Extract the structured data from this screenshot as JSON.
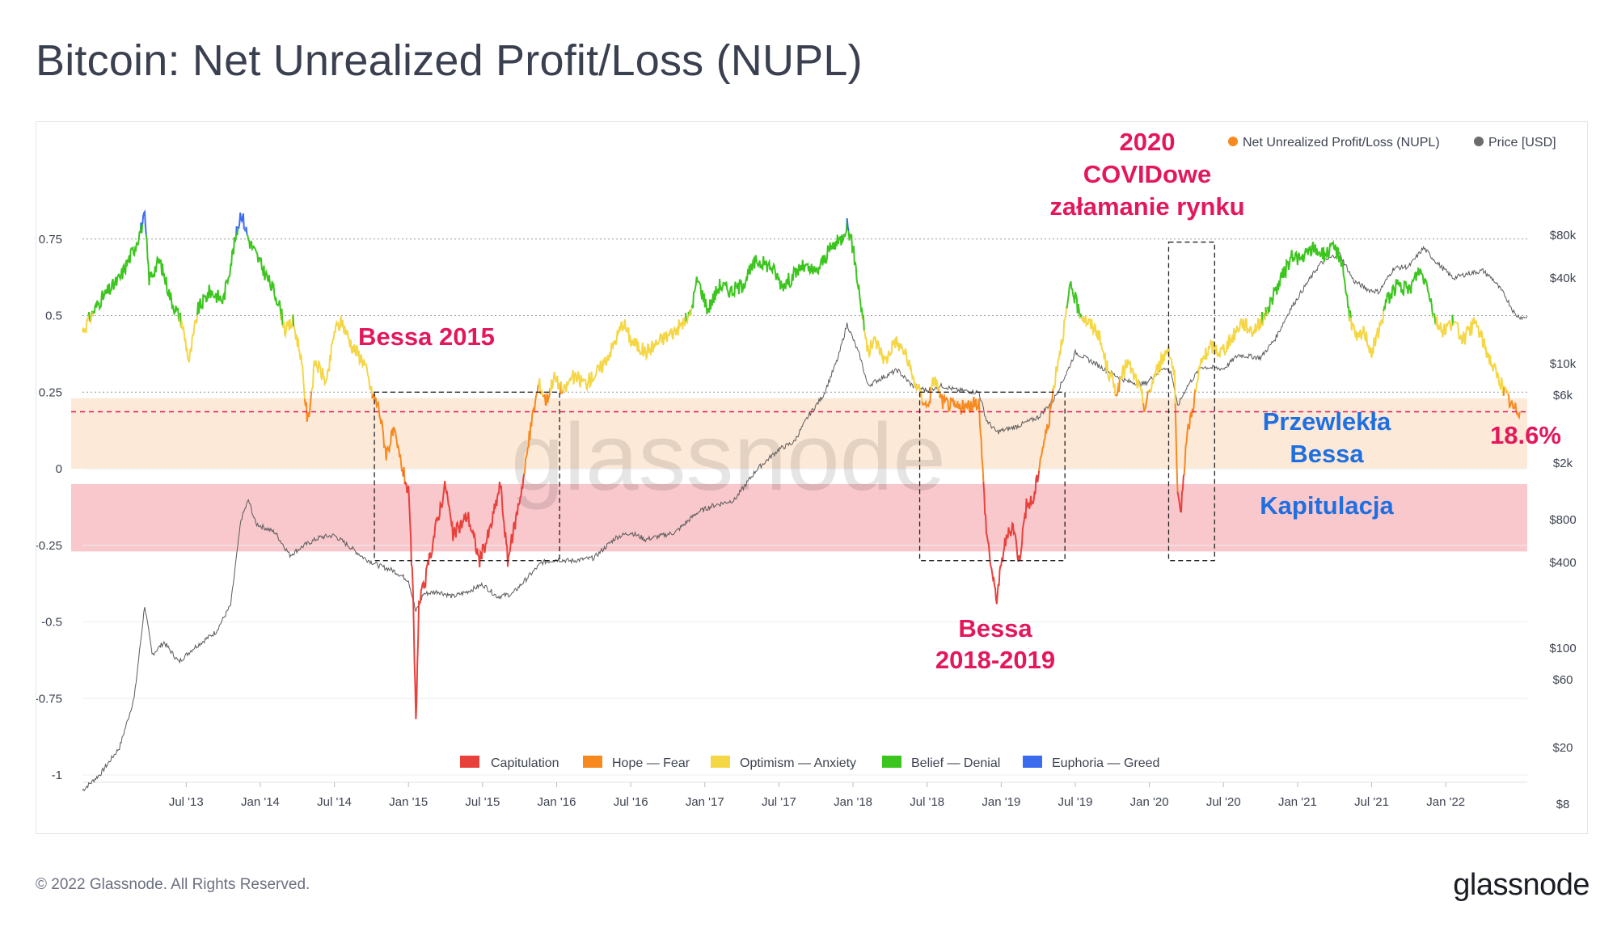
{
  "title": "Bitcoin: Net Unrealized Profit/Loss (NUPL)",
  "copyright": "© 2022 Glassnode. All Rights Reserved.",
  "brand": "glassnode",
  "watermark": "glassnode",
  "colors": {
    "capitulation": "#e8413c",
    "hope": "#f7891e",
    "optimism": "#f5d645",
    "belief": "#3cc51e",
    "euphoria": "#3b6cf0",
    "price": "#5a5a5a",
    "zone_hope": "#fde9d8",
    "zone_capitulation": "#f8c8cc",
    "annotation_red": "#e3185b",
    "annotation_blue": "#1f6fe0"
  },
  "chart_data": {
    "type": "line",
    "title": "Bitcoin: Net Unrealized Profit/Loss (NUPL)",
    "x_ticks": [
      "Jul '13",
      "Jan '14",
      "Jul '14",
      "Jan '15",
      "Jul '15",
      "Jan '16",
      "Jul '16",
      "Jan '17",
      "Jul '17",
      "Jan '18",
      "Jul '18",
      "Jan '19",
      "Jul '19",
      "Jan '20",
      "Jul '20",
      "Jan '21",
      "Jul '21",
      "Jan '22"
    ],
    "x_range": [
      2012.8,
      2022.55
    ],
    "y_left": {
      "ticks": [
        "0.75",
        "0.5",
        "0.25",
        "0",
        "-0.25",
        "-0.5",
        "-0.75",
        "-1"
      ],
      "range": [
        -1,
        1
      ]
    },
    "y_right": {
      "ticks": [
        "$80k",
        "$40k",
        "$10k",
        "$6k",
        "$2k",
        "$800",
        "$400",
        "$100",
        "$60",
        "$20",
        "$8"
      ],
      "scale": "log"
    },
    "series": [
      {
        "name": "Net Unrealized Profit/Loss (NUPL)",
        "axis": "left",
        "points": [
          [
            2012.8,
            0.45
          ],
          [
            2012.92,
            0.55
          ],
          [
            2013.05,
            0.62
          ],
          [
            2013.15,
            0.72
          ],
          [
            2013.22,
            0.82
          ],
          [
            2013.25,
            0.62
          ],
          [
            2013.32,
            0.68
          ],
          [
            2013.4,
            0.55
          ],
          [
            2013.47,
            0.48
          ],
          [
            2013.52,
            0.35
          ],
          [
            2013.58,
            0.52
          ],
          [
            2013.66,
            0.58
          ],
          [
            2013.75,
            0.55
          ],
          [
            2013.82,
            0.72
          ],
          [
            2013.87,
            0.84
          ],
          [
            2013.92,
            0.75
          ],
          [
            2013.97,
            0.7
          ],
          [
            2014.05,
            0.62
          ],
          [
            2014.12,
            0.55
          ],
          [
            2014.17,
            0.45
          ],
          [
            2014.22,
            0.48
          ],
          [
            2014.27,
            0.38
          ],
          [
            2014.32,
            0.15
          ],
          [
            2014.37,
            0.35
          ],
          [
            2014.45,
            0.28
          ],
          [
            2014.5,
            0.45
          ],
          [
            2014.55,
            0.48
          ],
          [
            2014.62,
            0.4
          ],
          [
            2014.7,
            0.35
          ],
          [
            2014.75,
            0.25
          ],
          [
            2014.8,
            0.2
          ],
          [
            2014.85,
            0.05
          ],
          [
            2014.9,
            0.12
          ],
          [
            2014.95,
            0.02
          ],
          [
            2015.0,
            -0.08
          ],
          [
            2015.03,
            -0.4
          ],
          [
            2015.05,
            -0.83
          ],
          [
            2015.07,
            -0.45
          ],
          [
            2015.12,
            -0.35
          ],
          [
            2015.18,
            -0.2
          ],
          [
            2015.25,
            -0.05
          ],
          [
            2015.3,
            -0.22
          ],
          [
            2015.4,
            -0.15
          ],
          [
            2015.48,
            -0.3
          ],
          [
            2015.55,
            -0.2
          ],
          [
            2015.62,
            -0.05
          ],
          [
            2015.67,
            -0.3
          ],
          [
            2015.73,
            -0.15
          ],
          [
            2015.78,
            -0.02
          ],
          [
            2015.83,
            0.15
          ],
          [
            2015.88,
            0.28
          ],
          [
            2015.93,
            0.22
          ],
          [
            2015.98,
            0.3
          ],
          [
            2016.05,
            0.25
          ],
          [
            2016.1,
            0.3
          ],
          [
            2016.2,
            0.28
          ],
          [
            2016.3,
            0.33
          ],
          [
            2016.38,
            0.4
          ],
          [
            2016.45,
            0.48
          ],
          [
            2016.5,
            0.42
          ],
          [
            2016.6,
            0.38
          ],
          [
            2016.7,
            0.42
          ],
          [
            2016.8,
            0.45
          ],
          [
            2016.9,
            0.5
          ],
          [
            2016.95,
            0.62
          ],
          [
            2017.02,
            0.52
          ],
          [
            2017.1,
            0.6
          ],
          [
            2017.18,
            0.58
          ],
          [
            2017.25,
            0.6
          ],
          [
            2017.35,
            0.68
          ],
          [
            2017.45,
            0.66
          ],
          [
            2017.52,
            0.6
          ],
          [
            2017.58,
            0.62
          ],
          [
            2017.65,
            0.66
          ],
          [
            2017.75,
            0.64
          ],
          [
            2017.85,
            0.72
          ],
          [
            2017.92,
            0.75
          ],
          [
            2017.96,
            0.8
          ],
          [
            2018.0,
            0.72
          ],
          [
            2018.05,
            0.55
          ],
          [
            2018.1,
            0.38
          ],
          [
            2018.15,
            0.42
          ],
          [
            2018.22,
            0.35
          ],
          [
            2018.28,
            0.42
          ],
          [
            2018.35,
            0.38
          ],
          [
            2018.4,
            0.3
          ],
          [
            2018.45,
            0.25
          ],
          [
            2018.5,
            0.2
          ],
          [
            2018.55,
            0.3
          ],
          [
            2018.6,
            0.22
          ],
          [
            2018.7,
            0.2
          ],
          [
            2018.78,
            0.2
          ],
          [
            2018.85,
            0.22
          ],
          [
            2018.88,
            -0.05
          ],
          [
            2018.9,
            -0.2
          ],
          [
            2018.95,
            -0.38
          ],
          [
            2018.97,
            -0.42
          ],
          [
            2019.02,
            -0.25
          ],
          [
            2019.08,
            -0.18
          ],
          [
            2019.12,
            -0.3
          ],
          [
            2019.17,
            -0.12
          ],
          [
            2019.22,
            -0.1
          ],
          [
            2019.27,
            0.05
          ],
          [
            2019.32,
            0.15
          ],
          [
            2019.37,
            0.32
          ],
          [
            2019.42,
            0.45
          ],
          [
            2019.47,
            0.6
          ],
          [
            2019.52,
            0.52
          ],
          [
            2019.58,
            0.48
          ],
          [
            2019.65,
            0.45
          ],
          [
            2019.72,
            0.32
          ],
          [
            2019.78,
            0.25
          ],
          [
            2019.85,
            0.35
          ],
          [
            2019.92,
            0.28
          ],
          [
            2019.97,
            0.2
          ],
          [
            2020.03,
            0.3
          ],
          [
            2020.08,
            0.35
          ],
          [
            2020.13,
            0.4
          ],
          [
            2020.17,
            0.3
          ],
          [
            2020.19,
            -0.1
          ],
          [
            2020.21,
            -0.15
          ],
          [
            2020.25,
            0.1
          ],
          [
            2020.3,
            0.22
          ],
          [
            2020.35,
            0.35
          ],
          [
            2020.42,
            0.4
          ],
          [
            2020.48,
            0.38
          ],
          [
            2020.55,
            0.42
          ],
          [
            2020.62,
            0.48
          ],
          [
            2020.7,
            0.45
          ],
          [
            2020.78,
            0.5
          ],
          [
            2020.85,
            0.58
          ],
          [
            2020.92,
            0.65
          ],
          [
            2020.97,
            0.7
          ],
          [
            2021.02,
            0.68
          ],
          [
            2021.1,
            0.72
          ],
          [
            2021.18,
            0.7
          ],
          [
            2021.25,
            0.72
          ],
          [
            2021.3,
            0.68
          ],
          [
            2021.35,
            0.5
          ],
          [
            2021.4,
            0.42
          ],
          [
            2021.45,
            0.45
          ],
          [
            2021.5,
            0.38
          ],
          [
            2021.55,
            0.45
          ],
          [
            2021.6,
            0.55
          ],
          [
            2021.67,
            0.6
          ],
          [
            2021.75,
            0.58
          ],
          [
            2021.82,
            0.65
          ],
          [
            2021.88,
            0.6
          ],
          [
            2021.92,
            0.5
          ],
          [
            2021.97,
            0.45
          ],
          [
            2022.05,
            0.48
          ],
          [
            2022.12,
            0.42
          ],
          [
            2022.2,
            0.48
          ],
          [
            2022.28,
            0.38
          ],
          [
            2022.35,
            0.3
          ],
          [
            2022.4,
            0.25
          ],
          [
            2022.45,
            0.2
          ],
          [
            2022.5,
            0.186
          ]
        ]
      },
      {
        "name": "Price [USD]",
        "axis": "right",
        "points": [
          [
            2012.8,
            10
          ],
          [
            2012.92,
            13
          ],
          [
            2013.05,
            20
          ],
          [
            2013.15,
            45
          ],
          [
            2013.22,
            200
          ],
          [
            2013.27,
            90
          ],
          [
            2013.35,
            110
          ],
          [
            2013.45,
            80
          ],
          [
            2013.55,
            100
          ],
          [
            2013.7,
            130
          ],
          [
            2013.8,
            200
          ],
          [
            2013.87,
            800
          ],
          [
            2013.92,
            1100
          ],
          [
            2013.97,
            750
          ],
          [
            2014.1,
            650
          ],
          [
            2014.2,
            450
          ],
          [
            2014.3,
            530
          ],
          [
            2014.4,
            600
          ],
          [
            2014.5,
            620
          ],
          [
            2014.6,
            520
          ],
          [
            2014.7,
            430
          ],
          [
            2014.8,
            380
          ],
          [
            2014.9,
            350
          ],
          [
            2015.0,
            300
          ],
          [
            2015.05,
            180
          ],
          [
            2015.1,
            240
          ],
          [
            2015.2,
            250
          ],
          [
            2015.3,
            230
          ],
          [
            2015.4,
            250
          ],
          [
            2015.5,
            280
          ],
          [
            2015.6,
            230
          ],
          [
            2015.7,
            240
          ],
          [
            2015.8,
            310
          ],
          [
            2015.9,
            400
          ],
          [
            2016.0,
            420
          ],
          [
            2016.1,
            410
          ],
          [
            2016.25,
            430
          ],
          [
            2016.4,
            600
          ],
          [
            2016.5,
            650
          ],
          [
            2016.6,
            580
          ],
          [
            2016.8,
            650
          ],
          [
            2016.95,
            900
          ],
          [
            2017.05,
            1000
          ],
          [
            2017.2,
            1100
          ],
          [
            2017.35,
            1800
          ],
          [
            2017.5,
            2500
          ],
          [
            2017.6,
            2800
          ],
          [
            2017.7,
            4300
          ],
          [
            2017.8,
            6000
          ],
          [
            2017.9,
            11000
          ],
          [
            2017.96,
            19000
          ],
          [
            2018.05,
            11000
          ],
          [
            2018.1,
            7000
          ],
          [
            2018.2,
            8000
          ],
          [
            2018.3,
            9000
          ],
          [
            2018.4,
            7000
          ],
          [
            2018.5,
            6500
          ],
          [
            2018.6,
            7000
          ],
          [
            2018.7,
            6500
          ],
          [
            2018.85,
            6300
          ],
          [
            2018.9,
            4000
          ],
          [
            2018.97,
            3300
          ],
          [
            2019.1,
            3600
          ],
          [
            2019.25,
            4200
          ],
          [
            2019.35,
            5500
          ],
          [
            2019.45,
            9000
          ],
          [
            2019.5,
            12000
          ],
          [
            2019.6,
            10500
          ],
          [
            2019.75,
            8500
          ],
          [
            2019.85,
            7500
          ],
          [
            2019.97,
            7200
          ],
          [
            2020.1,
            9500
          ],
          [
            2020.15,
            8500
          ],
          [
            2020.19,
            5000
          ],
          [
            2020.25,
            6800
          ],
          [
            2020.35,
            9500
          ],
          [
            2020.5,
            9200
          ],
          [
            2020.6,
            11500
          ],
          [
            2020.75,
            11000
          ],
          [
            2020.85,
            15000
          ],
          [
            2020.95,
            24000
          ],
          [
            2021.05,
            35000
          ],
          [
            2021.15,
            50000
          ],
          [
            2021.28,
            60000
          ],
          [
            2021.38,
            38000
          ],
          [
            2021.48,
            33000
          ],
          [
            2021.55,
            32000
          ],
          [
            2021.65,
            47000
          ],
          [
            2021.75,
            48000
          ],
          [
            2021.85,
            65000
          ],
          [
            2021.95,
            50000
          ],
          [
            2022.05,
            40000
          ],
          [
            2022.15,
            43000
          ],
          [
            2022.25,
            45000
          ],
          [
            2022.32,
            39000
          ],
          [
            2022.4,
            30000
          ],
          [
            2022.47,
            22000
          ],
          [
            2022.52,
            21000
          ],
          [
            2022.55,
            21500
          ]
        ]
      }
    ],
    "zones": [
      {
        "name": "Hope — Fear",
        "range": [
          0,
          0.23
        ]
      },
      {
        "name": "Capitulation",
        "range": [
          -0.27,
          -0.05
        ]
      }
    ],
    "reference_line": {
      "value": 0.186
    },
    "boxes": [
      {
        "label": "Bessa 2015",
        "x": [
          2014.77,
          2016.02
        ],
        "y": [
          -0.3,
          0.25
        ]
      },
      {
        "label": "Bessa 2018-2019",
        "x": [
          2018.45,
          2019.43
        ],
        "y": [
          -0.3,
          0.25
        ]
      },
      {
        "label": "2020 COVIDowe załamanie rynku",
        "x": [
          2020.13,
          2020.44
        ],
        "y": [
          -0.3,
          0.74
        ]
      }
    ],
    "legend_top": [
      "Net Unrealized Profit/Loss (NUPL)",
      "Price [USD]"
    ],
    "legend_bottom": [
      "Capitulation",
      "Hope — Fear",
      "Optimism — Anxiety",
      "Belief — Denial",
      "Euphoria — Greed"
    ]
  },
  "annotations": {
    "bessa2015": "Bessa 2015",
    "bessa2018_line1": "Bessa",
    "bessa2018_line2": "2018-2019",
    "covid_line1": "2020",
    "covid_line2": "COVIDowe",
    "covid_line3": "załamanie rynku",
    "przewlekla_line1": "Przewlekła",
    "przewlekla_line2": "Bessa",
    "kapitulacja": "Kapitulacja",
    "current_value": "18.6%"
  }
}
